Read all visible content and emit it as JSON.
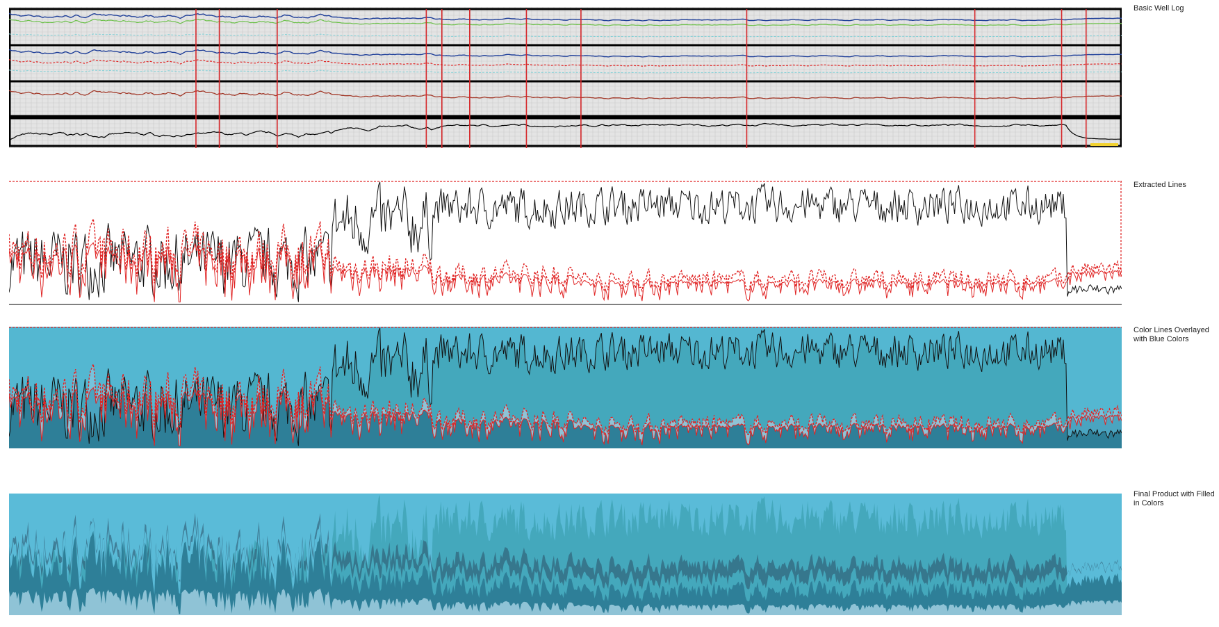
{
  "labels": {
    "basic": "Basic Well Log",
    "extracted": "Extracted Lines",
    "overlay": "Color Lines Overlayed with Blue Colors",
    "final": "Final Product with Filled in Colors"
  },
  "colors": {
    "black_curve": "#111111",
    "red_curve": "#e02424",
    "blue_curve": "#1f3f99",
    "green_curve": "#6cc04a",
    "cyan_curve": "#7fd0d6",
    "brown_curve": "#a33a2a",
    "teal_base": "#44a8bc",
    "teal_dark": "#2e7f98",
    "sky": "#62c2e2",
    "pale_blue": "#8fc3d6",
    "navy": "#2b4f66",
    "grid_bg": "#e4e4e4",
    "red_marker": "#d6272a"
  },
  "chart_data": {
    "type": "line",
    "n_points": 820,
    "depth_markers": [
      0.168,
      0.189,
      0.241,
      0.375,
      0.389,
      0.414,
      0.465,
      0.514,
      0.663,
      0.868,
      0.946,
      0.968
    ],
    "phases": [
      {
        "start": 0.0,
        "end": 0.29,
        "black": 0.34,
        "red": 0.42,
        "noise_b": 0.22,
        "noise_r": 0.16
      },
      {
        "start": 0.29,
        "end": 0.38,
        "black": 0.66,
        "red": 0.3,
        "noise_b": 0.22,
        "noise_r": 0.09
      },
      {
        "start": 0.38,
        "end": 0.51,
        "black": 0.78,
        "red": 0.24,
        "noise_b": 0.13,
        "noise_r": 0.07
      },
      {
        "start": 0.51,
        "end": 0.95,
        "black": 0.8,
        "red": 0.2,
        "noise_b": 0.12,
        "noise_r": 0.06
      },
      {
        "start": 0.95,
        "end": 1.0,
        "black": 0.12,
        "red": 0.28,
        "noise_b": 0.04,
        "noise_r": 0.05
      }
    ]
  }
}
